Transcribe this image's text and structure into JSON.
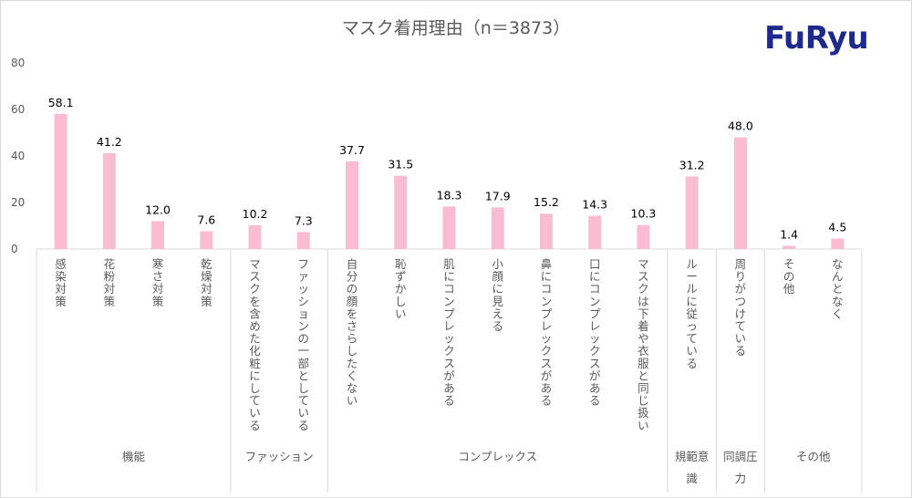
{
  "title": "マスク着用理由（n＝3873）",
  "logo_text": "FuRyu",
  "colors": {
    "bar": "#f9bcd1",
    "axis": "#d9d9d9",
    "text": "#595959",
    "logo": "#1d2a8c"
  },
  "chart_data": {
    "type": "bar",
    "title": "マスク着用理由（n＝3873）",
    "ylim": [
      0,
      80
    ],
    "yticks": [
      0,
      20,
      40,
      60,
      80
    ],
    "grid": false,
    "categories": [
      "感染対策",
      "花粉対策",
      "寒さ対策",
      "乾燥対策",
      "マスクを含めた化粧にしている",
      "ファッションの一部としている",
      "自分の顔をさらしたくない",
      "恥ずかしい",
      "肌にコンプレックスがある",
      "小顔に見える",
      "鼻にコンプレックスがある",
      "口にコンプレックスがある",
      "マスクは下着や衣服と同じ扱い",
      "ルールに従っている",
      "周りがつけている",
      "その他",
      "なんとなく"
    ],
    "values": [
      58.1,
      41.2,
      12.0,
      7.6,
      10.2,
      7.3,
      37.7,
      31.5,
      18.3,
      17.9,
      15.2,
      14.3,
      10.3,
      31.2,
      48.0,
      1.4,
      4.5
    ],
    "value_labels": [
      "58.1",
      "41.2",
      "12.0",
      "7.6",
      "10.2",
      "7.3",
      "37.7",
      "31.5",
      "18.3",
      "17.9",
      "15.2",
      "14.3",
      "10.3",
      "31.2",
      "48.0",
      "1.4",
      "4.5"
    ],
    "groups": [
      {
        "label": "機能",
        "count": 4
      },
      {
        "label": "ファッション",
        "count": 2
      },
      {
        "label": "コンプレックス",
        "count": 7
      },
      {
        "label": "規範意識",
        "count": 1
      },
      {
        "label": "同調圧力",
        "count": 1
      },
      {
        "label": "その他",
        "count": 2
      }
    ]
  }
}
